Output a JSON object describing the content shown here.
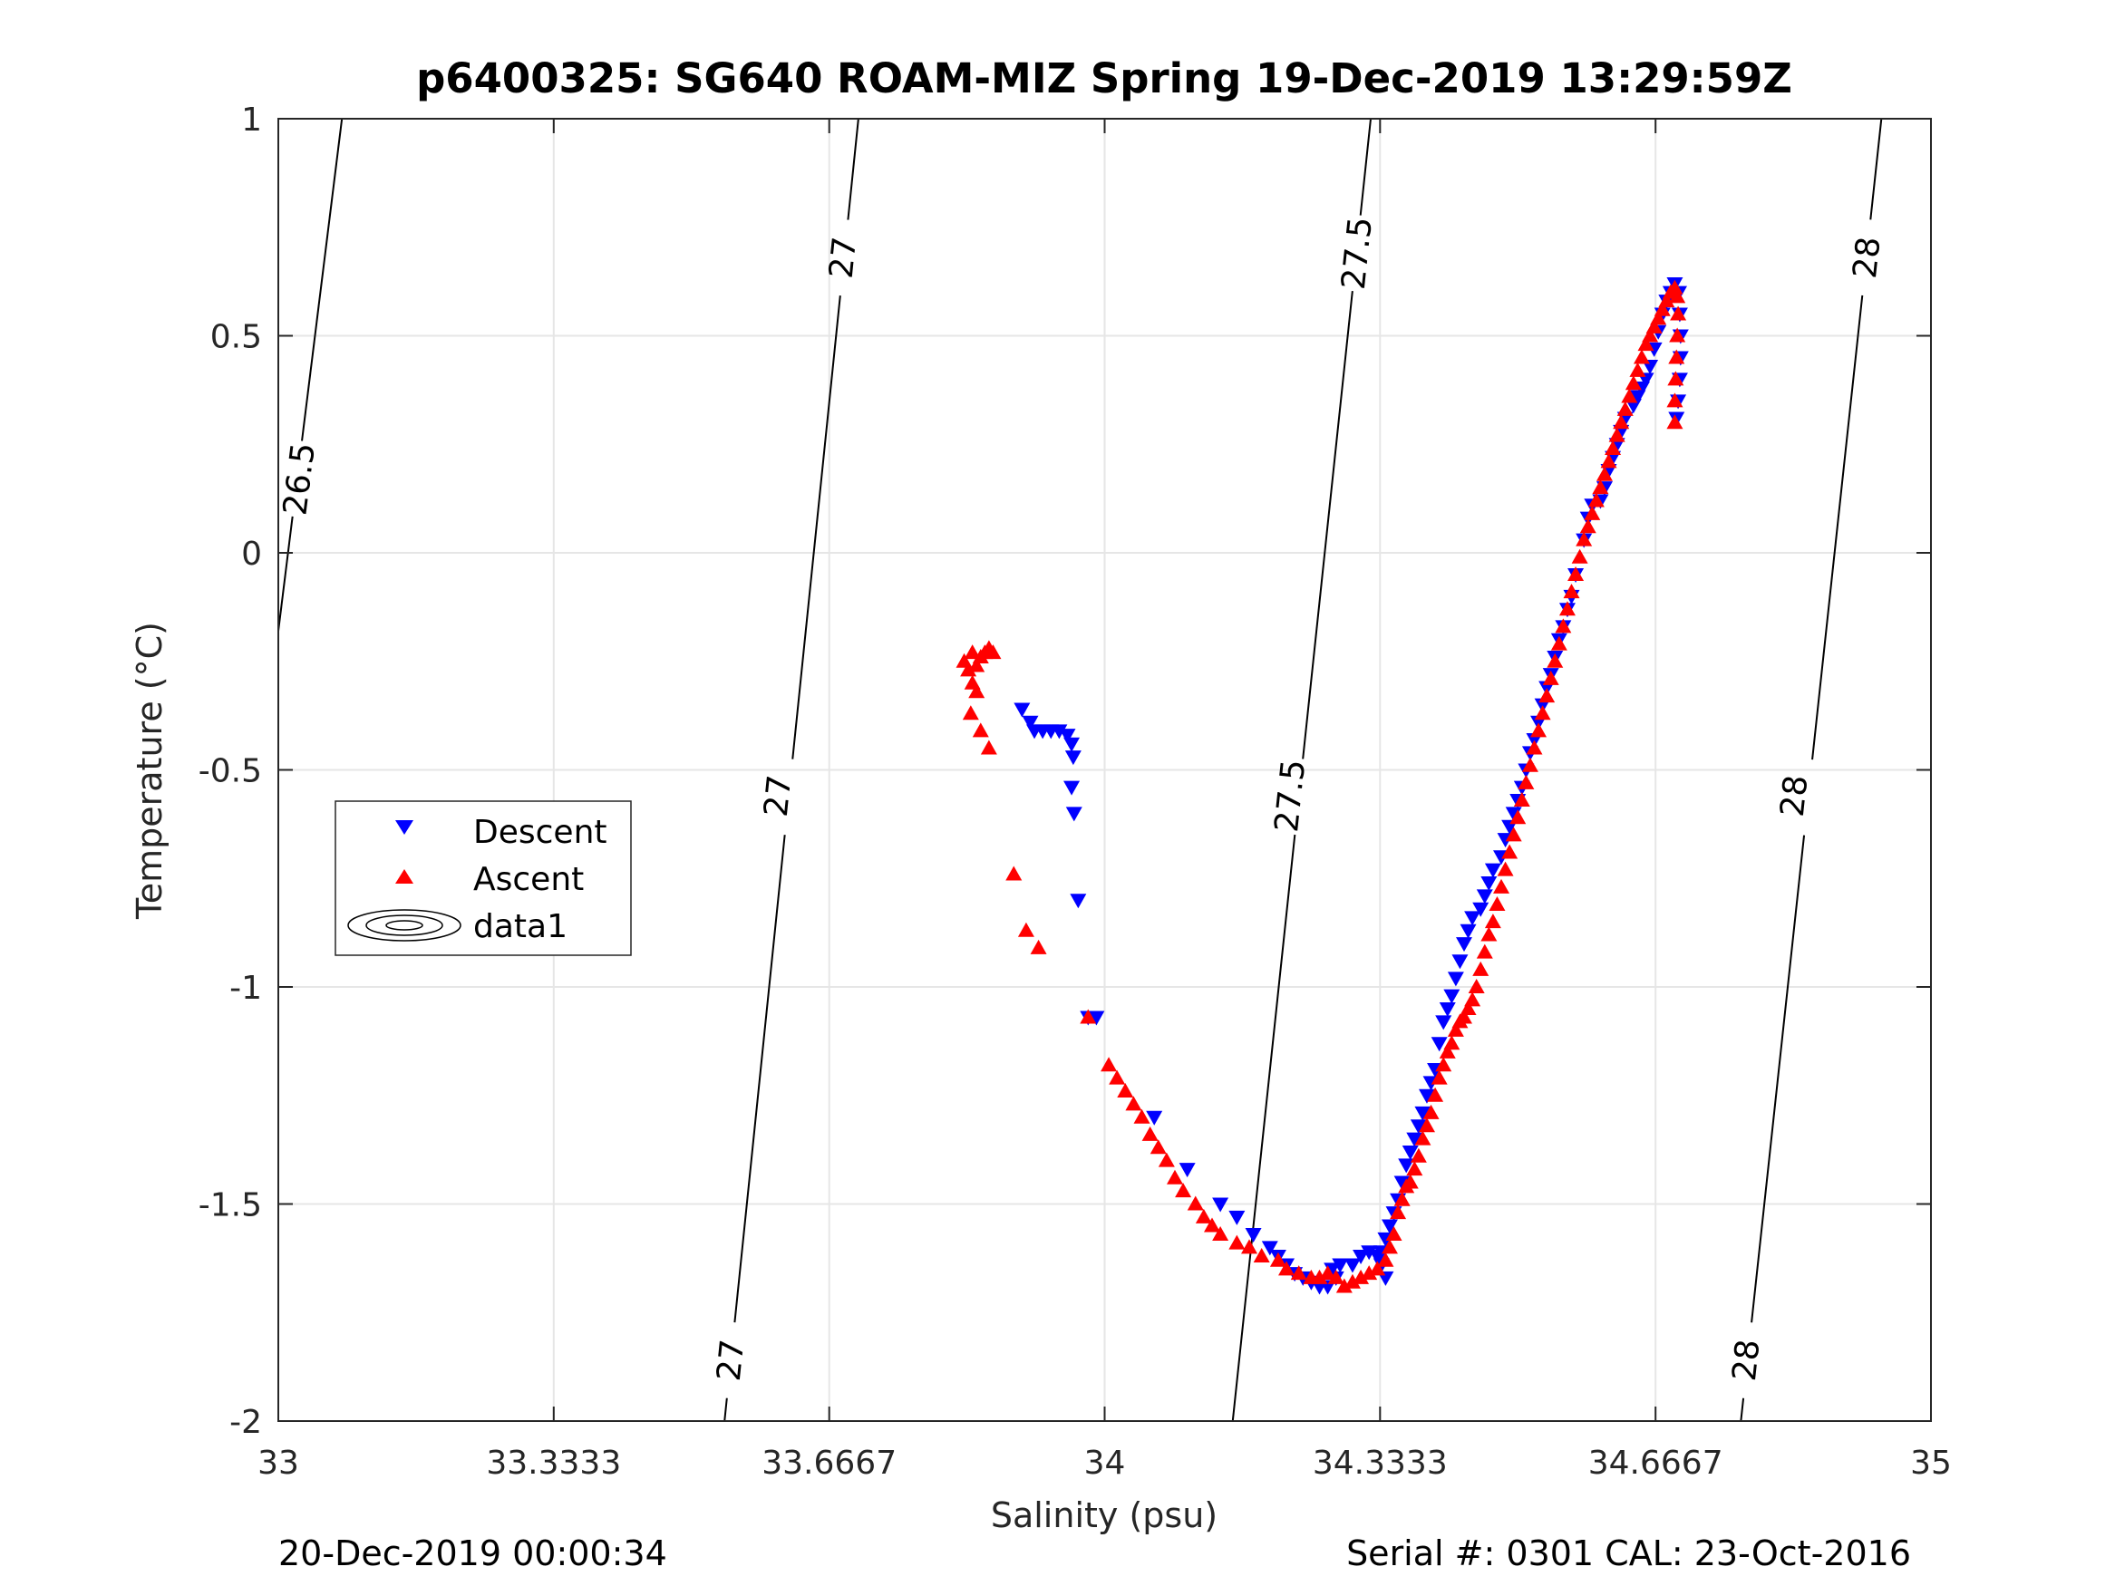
{
  "chart_data": {
    "type": "scatter",
    "title": "p6400325: SG640 ROAM-MIZ Spring 19-Dec-2019 13:29:59Z",
    "xlabel": "Salinity (psu)",
    "ylabel": "Temperature (°C)",
    "xlim": [
      33,
      35
    ],
    "ylim": [
      -2,
      1
    ],
    "x_ticks": [
      33,
      33.3333,
      33.6667,
      34,
      34.3333,
      34.6667,
      35
    ],
    "x_tick_labels": [
      "33",
      "33.3333",
      "33.6667",
      "34",
      "34.3333",
      "34.6667",
      "35"
    ],
    "y_ticks": [
      -2,
      -1.5,
      -1,
      -0.5,
      0,
      0.5,
      1
    ],
    "y_tick_labels": [
      "-2",
      "-1.5",
      "-1",
      "-0.5",
      "0",
      "0.5",
      "1"
    ],
    "grid": true,
    "legend": {
      "position": "left-middle",
      "entries": [
        "Descent",
        "Ascent",
        "data1"
      ]
    },
    "footer_left": "20-Dec-2019 00:00:34",
    "footer_right": "Serial #: 0301  CAL: 23-Oct-2016",
    "colors": {
      "descent": "#0000ff",
      "ascent": "#ff0000",
      "contour": "#000000",
      "grid": "#e6e6e6"
    },
    "contours": [
      {
        "level": "26.5",
        "points": [
          [
            33.077,
            1.0
          ],
          [
            33.0,
            -0.18
          ]
        ],
        "labels": [
          [
            33.026,
            0.17
          ]
        ]
      },
      {
        "level": "27",
        "points": [
          [
            33.702,
            1.0
          ],
          [
            33.54,
            -2.0
          ]
        ],
        "labels": [
          [
            33.684,
            0.68
          ],
          [
            33.605,
            -0.56
          ],
          [
            33.548,
            -1.86
          ]
        ]
      },
      {
        "level": "27.5",
        "points": [
          [
            34.322,
            1.0
          ],
          [
            34.155,
            -2.0
          ]
        ],
        "labels": [
          [
            34.306,
            0.69
          ],
          [
            34.225,
            -0.56
          ]
        ]
      },
      {
        "level": "28",
        "points": [
          [
            34.94,
            1.0
          ],
          [
            34.77,
            -2.0
          ]
        ],
        "labels": [
          [
            34.923,
            0.68
          ],
          [
            34.835,
            -0.56
          ],
          [
            34.777,
            -1.86
          ]
        ]
      }
    ],
    "series": [
      {
        "name": "Descent",
        "marker": "triangle-down",
        "points": [
          [
            33.9,
            -0.36
          ],
          [
            33.91,
            -0.39
          ],
          [
            33.915,
            -0.41
          ],
          [
            33.925,
            -0.41
          ],
          [
            33.935,
            -0.41
          ],
          [
            33.945,
            -0.41
          ],
          [
            33.955,
            -0.42
          ],
          [
            33.96,
            -0.44
          ],
          [
            33.962,
            -0.47
          ],
          [
            33.96,
            -0.54
          ],
          [
            33.963,
            -0.6
          ],
          [
            33.968,
            -0.8
          ],
          [
            33.98,
            -1.07
          ],
          [
            33.99,
            -1.07
          ],
          [
            34.06,
            -1.3
          ],
          [
            34.1,
            -1.42
          ],
          [
            34.14,
            -1.5
          ],
          [
            34.16,
            -1.53
          ],
          [
            34.18,
            -1.57
          ],
          [
            34.2,
            -1.6
          ],
          [
            34.21,
            -1.62
          ],
          [
            34.22,
            -1.64
          ],
          [
            34.23,
            -1.66
          ],
          [
            34.24,
            -1.67
          ],
          [
            34.25,
            -1.68
          ],
          [
            34.26,
            -1.69
          ],
          [
            34.27,
            -1.69
          ],
          [
            34.28,
            -1.67
          ],
          [
            34.275,
            -1.65
          ],
          [
            34.285,
            -1.64
          ],
          [
            34.3,
            -1.64
          ],
          [
            34.31,
            -1.62
          ],
          [
            34.32,
            -1.61
          ],
          [
            34.33,
            -1.62
          ],
          [
            34.335,
            -1.64
          ],
          [
            34.34,
            -1.67
          ],
          [
            34.335,
            -1.61
          ],
          [
            34.34,
            -1.58
          ],
          [
            34.345,
            -1.55
          ],
          [
            34.35,
            -1.52
          ],
          [
            34.355,
            -1.49
          ],
          [
            34.36,
            -1.45
          ],
          [
            34.365,
            -1.41
          ],
          [
            34.37,
            -1.38
          ],
          [
            34.375,
            -1.35
          ],
          [
            34.38,
            -1.32
          ],
          [
            34.385,
            -1.29
          ],
          [
            34.39,
            -1.25
          ],
          [
            34.395,
            -1.22
          ],
          [
            34.4,
            -1.19
          ],
          [
            34.405,
            -1.13
          ],
          [
            34.41,
            -1.08
          ],
          [
            34.415,
            -1.05
          ],
          [
            34.42,
            -1.02
          ],
          [
            34.425,
            -0.98
          ],
          [
            34.43,
            -0.94
          ],
          [
            34.435,
            -0.9
          ],
          [
            34.44,
            -0.87
          ],
          [
            34.445,
            -0.84
          ],
          [
            34.455,
            -0.82
          ],
          [
            34.46,
            -0.79
          ],
          [
            34.465,
            -0.76
          ],
          [
            34.47,
            -0.73
          ],
          [
            34.48,
            -0.7
          ],
          [
            34.485,
            -0.66
          ],
          [
            34.49,
            -0.63
          ],
          [
            34.495,
            -0.6
          ],
          [
            34.5,
            -0.57
          ],
          [
            34.505,
            -0.54
          ],
          [
            34.51,
            -0.5
          ],
          [
            34.515,
            -0.46
          ],
          [
            34.52,
            -0.43
          ],
          [
            34.525,
            -0.39
          ],
          [
            34.53,
            -0.35
          ],
          [
            34.535,
            -0.31
          ],
          [
            34.54,
            -0.28
          ],
          [
            34.545,
            -0.24
          ],
          [
            34.55,
            -0.2
          ],
          [
            34.555,
            -0.17
          ],
          [
            34.56,
            -0.13
          ],
          [
            34.565,
            -0.1
          ],
          [
            34.57,
            -0.05
          ],
          [
            34.58,
            0.03
          ],
          [
            34.585,
            0.08
          ],
          [
            34.59,
            0.11
          ],
          [
            34.6,
            0.12
          ],
          [
            34.605,
            0.15
          ],
          [
            34.61,
            0.19
          ],
          [
            34.615,
            0.22
          ],
          [
            34.62,
            0.25
          ],
          [
            34.625,
            0.28
          ],
          [
            34.63,
            0.31
          ],
          [
            34.64,
            0.34
          ],
          [
            34.645,
            0.36
          ],
          [
            34.65,
            0.38
          ],
          [
            34.655,
            0.4
          ],
          [
            34.66,
            0.43
          ],
          [
            34.665,
            0.47
          ],
          [
            34.67,
            0.51
          ],
          [
            34.675,
            0.55
          ],
          [
            34.68,
            0.58
          ],
          [
            34.685,
            0.6
          ],
          [
            34.69,
            0.62
          ],
          [
            34.695,
            0.6
          ],
          [
            34.696,
            0.55
          ],
          [
            34.697,
            0.5
          ],
          [
            34.697,
            0.45
          ],
          [
            34.696,
            0.4
          ],
          [
            34.694,
            0.35
          ],
          [
            34.692,
            0.31
          ]
        ]
      },
      {
        "name": "Ascent",
        "marker": "triangle-up",
        "points": [
          [
            33.83,
            -0.25
          ],
          [
            33.84,
            -0.23
          ],
          [
            33.845,
            -0.26
          ],
          [
            33.85,
            -0.24
          ],
          [
            33.855,
            -0.23
          ],
          [
            33.86,
            -0.22
          ],
          [
            33.865,
            -0.23
          ],
          [
            33.835,
            -0.27
          ],
          [
            33.84,
            -0.3
          ],
          [
            33.845,
            -0.32
          ],
          [
            33.838,
            -0.37
          ],
          [
            33.85,
            -0.41
          ],
          [
            33.86,
            -0.45
          ],
          [
            33.89,
            -0.74
          ],
          [
            33.905,
            -0.87
          ],
          [
            33.92,
            -0.91
          ],
          [
            33.98,
            -1.07
          ],
          [
            34.005,
            -1.18
          ],
          [
            34.015,
            -1.21
          ],
          [
            34.025,
            -1.24
          ],
          [
            34.035,
            -1.27
          ],
          [
            34.045,
            -1.3
          ],
          [
            34.055,
            -1.34
          ],
          [
            34.065,
            -1.37
          ],
          [
            34.075,
            -1.4
          ],
          [
            34.085,
            -1.44
          ],
          [
            34.095,
            -1.47
          ],
          [
            34.11,
            -1.5
          ],
          [
            34.12,
            -1.53
          ],
          [
            34.13,
            -1.55
          ],
          [
            34.14,
            -1.57
          ],
          [
            34.16,
            -1.59
          ],
          [
            34.175,
            -1.6
          ],
          [
            34.19,
            -1.62
          ],
          [
            34.21,
            -1.63
          ],
          [
            34.22,
            -1.65
          ],
          [
            34.235,
            -1.66
          ],
          [
            34.25,
            -1.67
          ],
          [
            34.26,
            -1.67
          ],
          [
            34.27,
            -1.66
          ],
          [
            34.28,
            -1.67
          ],
          [
            34.29,
            -1.69
          ],
          [
            34.3,
            -1.68
          ],
          [
            34.31,
            -1.67
          ],
          [
            34.32,
            -1.66
          ],
          [
            34.33,
            -1.65
          ],
          [
            34.34,
            -1.63
          ],
          [
            34.345,
            -1.6
          ],
          [
            34.35,
            -1.57
          ],
          [
            34.355,
            -1.52
          ],
          [
            34.36,
            -1.49
          ],
          [
            34.365,
            -1.46
          ],
          [
            34.37,
            -1.45
          ],
          [
            34.375,
            -1.42
          ],
          [
            34.38,
            -1.39
          ],
          [
            34.385,
            -1.35
          ],
          [
            34.39,
            -1.32
          ],
          [
            34.395,
            -1.29
          ],
          [
            34.4,
            -1.25
          ],
          [
            34.405,
            -1.21
          ],
          [
            34.41,
            -1.18
          ],
          [
            34.415,
            -1.15
          ],
          [
            34.42,
            -1.13
          ],
          [
            34.425,
            -1.1
          ],
          [
            34.43,
            -1.08
          ],
          [
            34.435,
            -1.07
          ],
          [
            34.44,
            -1.05
          ],
          [
            34.445,
            -1.03
          ],
          [
            34.45,
            -1.0
          ],
          [
            34.455,
            -0.96
          ],
          [
            34.46,
            -0.92
          ],
          [
            34.465,
            -0.88
          ],
          [
            34.47,
            -0.85
          ],
          [
            34.475,
            -0.81
          ],
          [
            34.48,
            -0.77
          ],
          [
            34.485,
            -0.73
          ],
          [
            34.49,
            -0.69
          ],
          [
            34.495,
            -0.65
          ],
          [
            34.5,
            -0.61
          ],
          [
            34.505,
            -0.57
          ],
          [
            34.51,
            -0.53
          ],
          [
            34.515,
            -0.49
          ],
          [
            34.52,
            -0.45
          ],
          [
            34.525,
            -0.41
          ],
          [
            34.53,
            -0.37
          ],
          [
            34.535,
            -0.33
          ],
          [
            34.54,
            -0.29
          ],
          [
            34.545,
            -0.25
          ],
          [
            34.55,
            -0.21
          ],
          [
            34.555,
            -0.17
          ],
          [
            34.56,
            -0.13
          ],
          [
            34.565,
            -0.09
          ],
          [
            34.57,
            -0.05
          ],
          [
            34.575,
            -0.01
          ],
          [
            34.58,
            0.03
          ],
          [
            34.585,
            0.06
          ],
          [
            34.59,
            0.09
          ],
          [
            34.595,
            0.12
          ],
          [
            34.6,
            0.15
          ],
          [
            34.605,
            0.18
          ],
          [
            34.61,
            0.21
          ],
          [
            34.615,
            0.24
          ],
          [
            34.62,
            0.27
          ],
          [
            34.625,
            0.3
          ],
          [
            34.63,
            0.33
          ],
          [
            34.635,
            0.36
          ],
          [
            34.64,
            0.39
          ],
          [
            34.645,
            0.42
          ],
          [
            34.65,
            0.45
          ],
          [
            34.655,
            0.48
          ],
          [
            34.66,
            0.5
          ],
          [
            34.665,
            0.52
          ],
          [
            34.67,
            0.54
          ],
          [
            34.675,
            0.56
          ],
          [
            34.68,
            0.58
          ],
          [
            34.685,
            0.6
          ],
          [
            34.69,
            0.61
          ],
          [
            34.693,
            0.59
          ],
          [
            34.694,
            0.55
          ],
          [
            34.693,
            0.5
          ],
          [
            34.692,
            0.45
          ],
          [
            34.691,
            0.4
          ],
          [
            34.69,
            0.35
          ],
          [
            34.69,
            0.3
          ]
        ]
      }
    ]
  }
}
